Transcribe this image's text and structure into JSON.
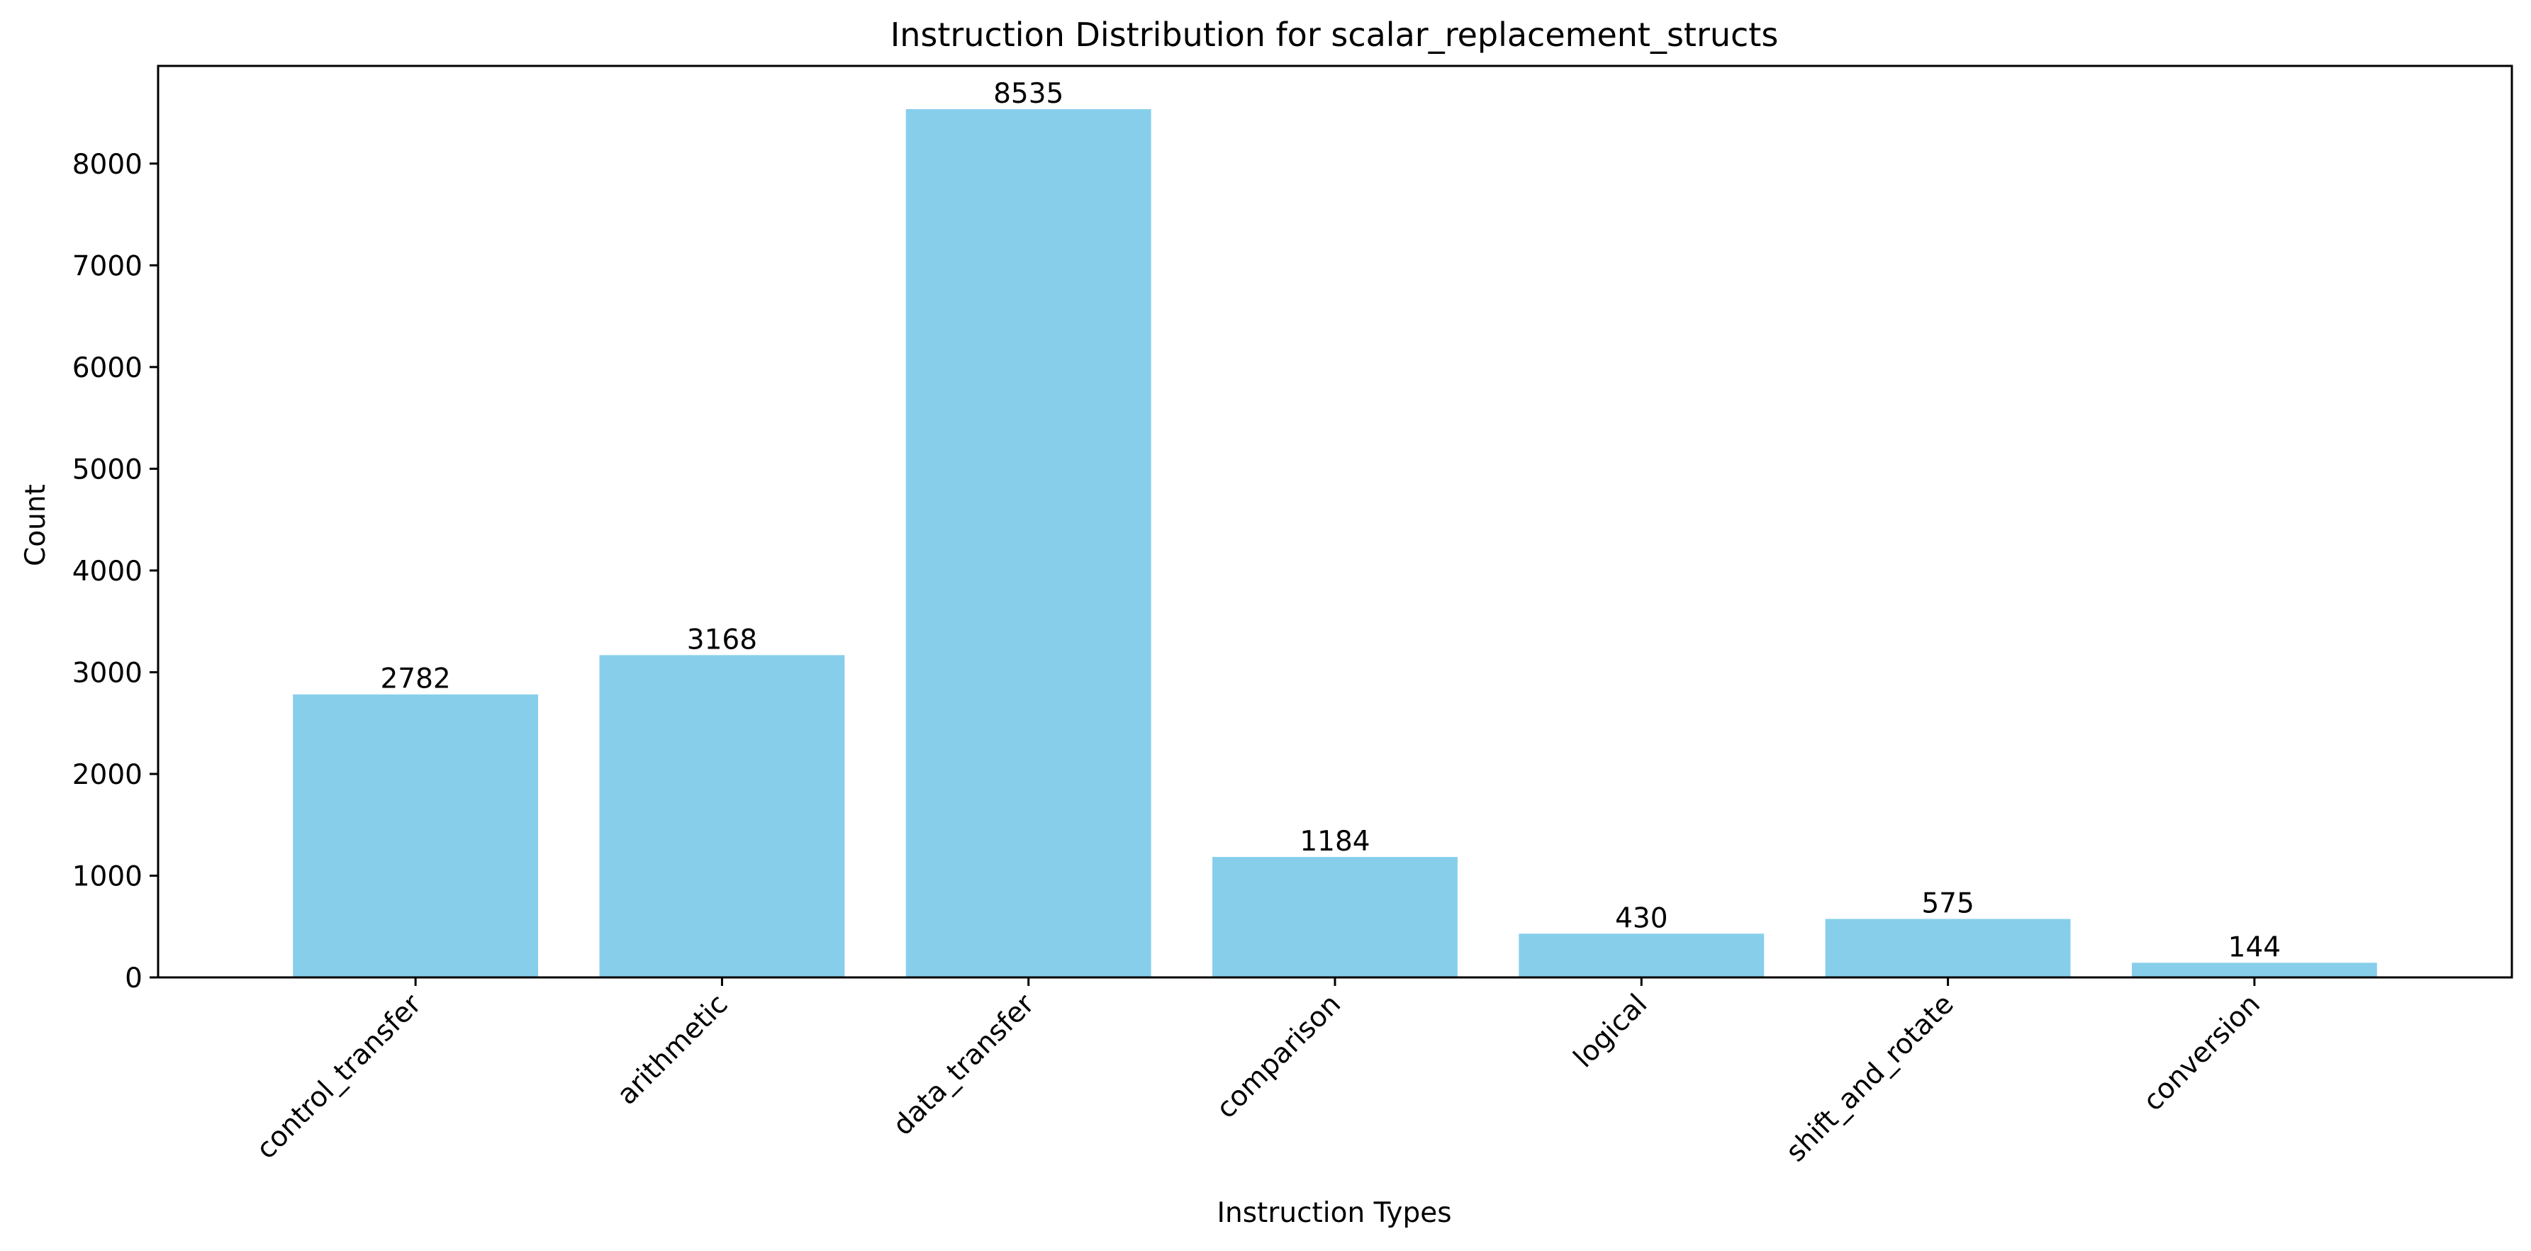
{
  "chart_data": {
    "type": "bar",
    "title": "Instruction Distribution for scalar_replacement_structs",
    "xlabel": "Instruction Types",
    "ylabel": "Count",
    "categories": [
      "control_transfer",
      "arithmetic",
      "data_transfer",
      "comparison",
      "logical",
      "shift_and_rotate",
      "conversion"
    ],
    "values": [
      2782,
      3168,
      8535,
      1184,
      430,
      575,
      144
    ],
    "value_labels": [
      "2782",
      "3168",
      "8535",
      "1184",
      "430",
      "575",
      "144"
    ],
    "ylim": [
      0,
      8960
    ],
    "yticks": [
      0,
      1000,
      2000,
      3000,
      4000,
      5000,
      6000,
      7000,
      8000
    ],
    "ytick_labels": [
      "0",
      "1000",
      "2000",
      "3000",
      "4000",
      "5000",
      "6000",
      "7000",
      "8000"
    ],
    "grid": false,
    "legend": "none",
    "bar_color": "#87ceeb"
  }
}
